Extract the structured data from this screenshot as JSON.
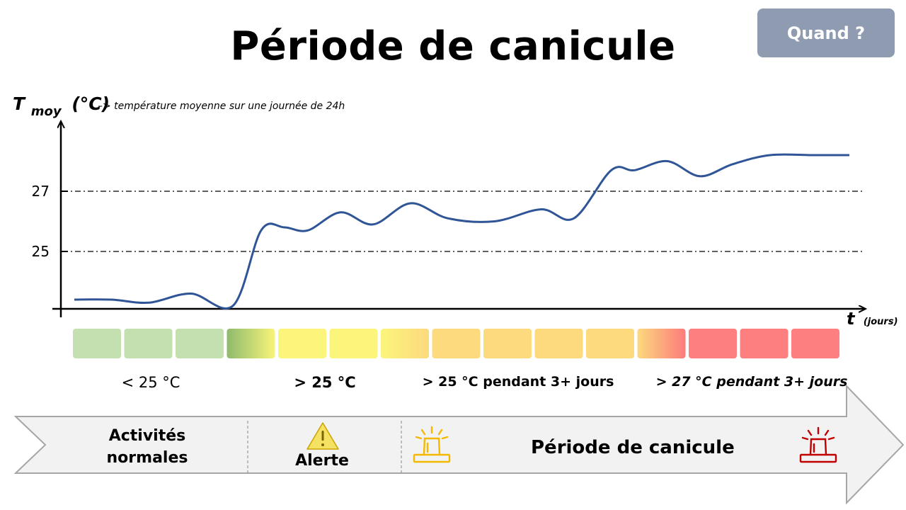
{
  "title": "Période de canicule",
  "button_label": "Quand ?",
  "chart_data": {
    "type": "line",
    "y_axis": {
      "label_main": "T",
      "label_sub": "moy",
      "label_unit": "(°C)",
      "note": "–> température moyenne sur une journée de 24h"
    },
    "x_axis": {
      "label_main": "t",
      "label_unit": "(jours)"
    },
    "yticks": [
      {
        "value": 25,
        "label": "25"
      },
      {
        "value": 27,
        "label": "27"
      }
    ],
    "reference_lines": [
      25,
      27
    ],
    "x": [
      0,
      0.8,
      1.6,
      2.5,
      3.4,
      4.0,
      4.5,
      5.0,
      5.7,
      6.4,
      7.2,
      8.0,
      9.0,
      10.0,
      10.7,
      11.5,
      12.0,
      12.7,
      13.4,
      14.1,
      14.9,
      15.8,
      16.6
    ],
    "y": [
      23.4,
      23.4,
      23.3,
      23.6,
      23.2,
      25.7,
      25.8,
      25.7,
      26.3,
      25.9,
      26.6,
      26.1,
      26.0,
      26.4,
      26.1,
      27.7,
      27.7,
      28.0,
      27.5,
      27.9,
      28.2,
      28.2,
      28.2
    ],
    "ylim": [
      22.5,
      29.5
    ]
  },
  "color_strip": [
    {
      "color": "#c5e0b0"
    },
    {
      "color": "#c5e0b0"
    },
    {
      "color": "#c5e0b0"
    },
    {
      "from": "#8fba6d",
      "to": "#f8f47a"
    },
    {
      "color": "#fbf57c"
    },
    {
      "color": "#fbf57c"
    },
    {
      "from": "#fbf57c",
      "to": "#fcd97e"
    },
    {
      "color": "#fcda7d"
    },
    {
      "color": "#fcda7d"
    },
    {
      "color": "#fcda7d"
    },
    {
      "color": "#fcda7d"
    },
    {
      "from": "#fcd97e",
      "to": "#fd7b7b"
    },
    {
      "color": "#fd7f7f"
    },
    {
      "color": "#fd7f7f"
    },
    {
      "color": "#fd7f7f"
    }
  ],
  "strip_labels": {
    "normal": "< 25 °C",
    "alert": "> 25 °C",
    "three_days": "> 25 °C pendant 3+ jours",
    "heat": "> 27 °C pendant 3+ jours"
  },
  "banner": {
    "normal": [
      "Activités",
      "normales"
    ],
    "alert": "Alerte",
    "canicule": "Période de canicule"
  },
  "colors": {
    "line": "#2f5597",
    "banner_fill": "#f2f2f2",
    "banner_stroke": "#a6a6a6",
    "warning_yellow": "#f5e263",
    "siren_orange": "#f5b800",
    "siren_red": "#c00000"
  },
  "icons": [
    "warning-triangle-icon",
    "siren-orange-icon",
    "siren-red-icon"
  ]
}
